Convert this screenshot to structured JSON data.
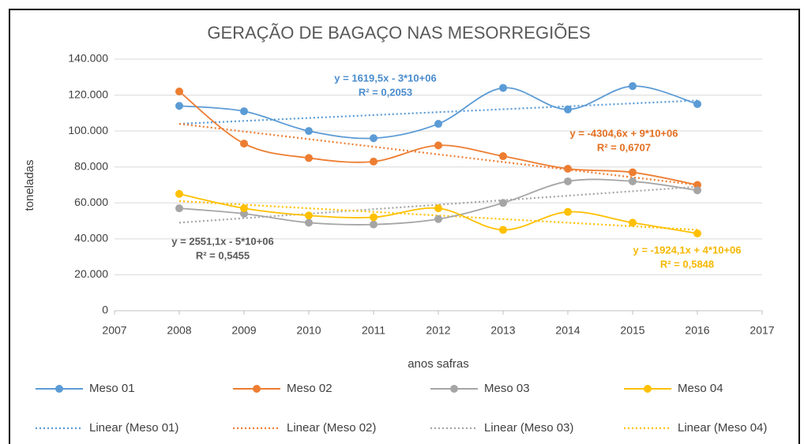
{
  "chart_data": {
    "type": "line",
    "title": "GERAÇÃO DE BAGAÇO NAS MESORREGIÕES",
    "x_label": "anos safras",
    "y_label": "toneladas",
    "x": [
      2008,
      2009,
      2010,
      2011,
      2012,
      2013,
      2014,
      2015,
      2016
    ],
    "xlim": [
      2007,
      2017
    ],
    "xticks": [
      2007,
      2008,
      2009,
      2010,
      2011,
      2012,
      2013,
      2014,
      2015,
      2016,
      2017
    ],
    "ylim": [
      0,
      140000
    ],
    "yticks": [
      0,
      {
        "value": 20000,
        "label": "20.000"
      },
      {
        "value": 40000,
        "label": "40.000"
      },
      {
        "value": 60000,
        "label": "60.000"
      },
      {
        "value": 80000,
        "label": "80.000"
      },
      {
        "value": 100000,
        "label": "100.000"
      },
      {
        "value": 120000,
        "label": "120.000"
      },
      {
        "value": 140000,
        "label": "140.000"
      }
    ],
    "grid": true,
    "smooth": true,
    "series": [
      {
        "name": "Meso 01",
        "color": "#5b9bd5",
        "values": [
          114000,
          111000,
          100000,
          96000,
          104000,
          124000,
          112000,
          125000,
          115000
        ]
      },
      {
        "name": "Meso 02",
        "color": "#ed7d31",
        "values": [
          122000,
          93000,
          85000,
          83000,
          92000,
          86000,
          79000,
          77000,
          70000
        ]
      },
      {
        "name": "Meso 03",
        "color": "#a5a5a5",
        "values": [
          57000,
          54000,
          49000,
          48000,
          51000,
          60000,
          72000,
          72000,
          67000
        ]
      },
      {
        "name": "Meso 04",
        "color": "#ffc000",
        "values": [
          65000,
          57000,
          53000,
          52000,
          57000,
          45000,
          55000,
          49000,
          43000
        ]
      }
    ],
    "trendlines": [
      {
        "name": "Linear (Meso 01)",
        "color": "#5b9bd5",
        "x": [
          2008,
          2016
        ],
        "values": [
          104000,
          117000
        ]
      },
      {
        "name": "Linear (Meso 02)",
        "color": "#ed7d31",
        "x": [
          2008,
          2016
        ],
        "values": [
          104000,
          70000
        ]
      },
      {
        "name": "Linear (Meso 03)",
        "color": "#a5a5a5",
        "x": [
          2008,
          2016
        ],
        "values": [
          49000,
          69000
        ]
      },
      {
        "name": "Linear (Meso 04)",
        "color": "#ffc000",
        "x": [
          2008,
          2016
        ],
        "values": [
          61000,
          45000
        ]
      }
    ],
    "annotations": [
      {
        "color": "#4a8ccd",
        "lines": [
          "y = 1619,5x - 3*10+06",
          "R² = 0,2053"
        ]
      },
      {
        "color": "#e46f20",
        "lines": [
          "y = -4304,6x + 9*10+06",
          "R² = 0,6707"
        ]
      },
      {
        "color": "#595959",
        "lines": [
          "y = 2551,1x - 5*10+06",
          "R² = 0,5455"
        ]
      },
      {
        "color": "#f5b800",
        "lines": [
          "y = -1924,1x + 4*10+06",
          "R² = 0,5848"
        ]
      }
    ]
  }
}
